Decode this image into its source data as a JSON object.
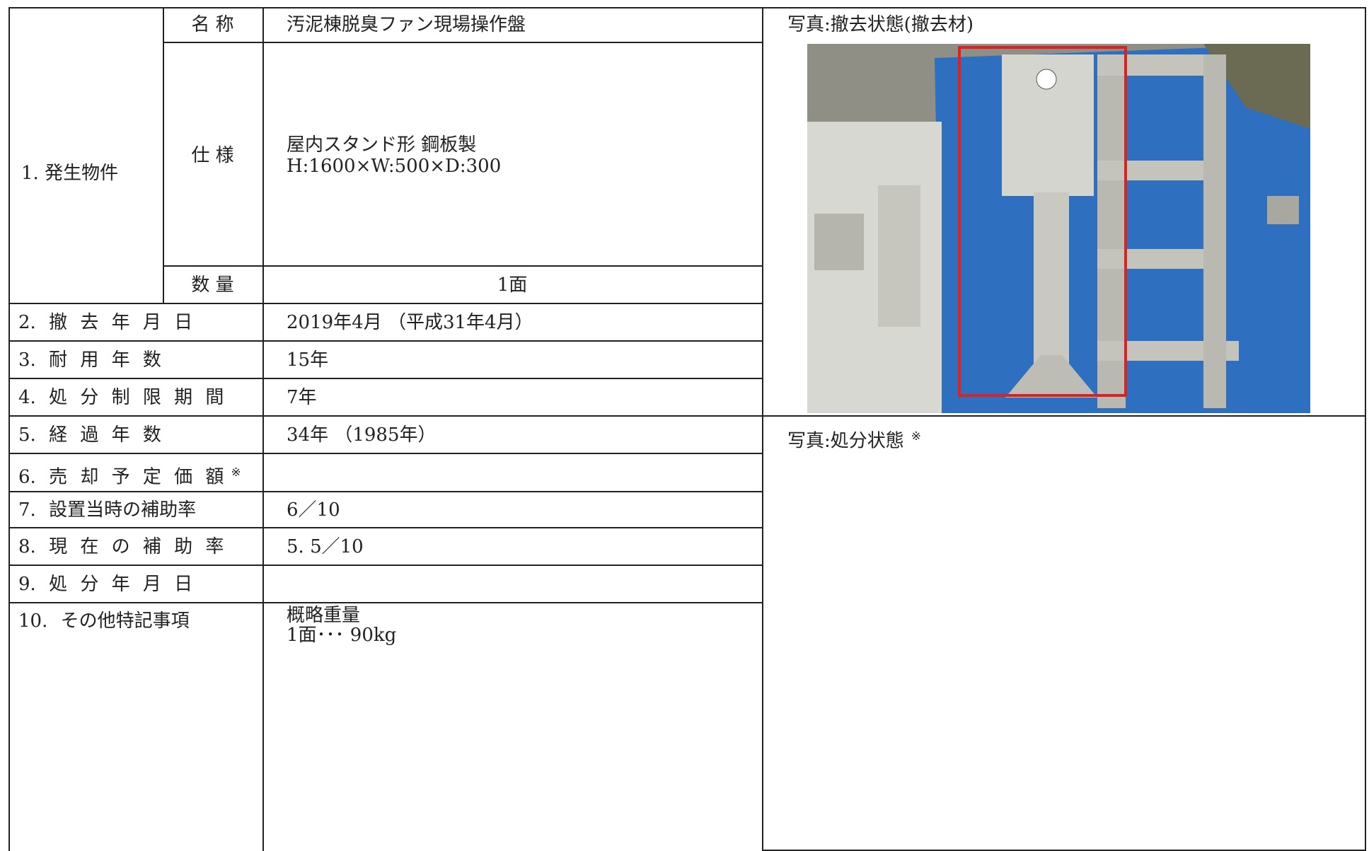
{
  "section1": {
    "label": "1. 発生物件",
    "name_label": "名 称",
    "name": "汚泥棟脱臭ファン現場操作盤",
    "spec_label": "仕 様",
    "spec": [
      "屋内スタンド形 鋼板製",
      "H:1600×W:500×D:300"
    ],
    "qty_label": "数 量",
    "qty": "1面"
  },
  "rows": [
    {
      "label": "2. 撤 去 年 月 日",
      "value": "2019年4月 （平成31年4月）"
    },
    {
      "label": "3. 耐 用 年 数",
      "value": "15年"
    },
    {
      "label": "4. 処 分 制 限 期 間",
      "value": "7年"
    },
    {
      "label": "5. 経 過 年 数",
      "value": "34年 （1985年）"
    },
    {
      "label": "6. 売 却 予 定 価 額",
      "mark": "※"
    },
    {
      "label": "7. 設置当時の補助率",
      "value": "6／10"
    },
    {
      "label": "8. 現 在 の 補 助 率",
      "value": "5. 5／10"
    },
    {
      "label": "9. 処 分 年 月 日"
    },
    {
      "label": "10. その他特記事項",
      "value": [
        "概略重量",
        "1面･･･ 90kg"
      ]
    }
  ],
  "photos": [
    {
      "caption": "写真:撤去状態(撤去材)"
    },
    {
      "caption": "写真:処分状態",
      "mark": "※"
    }
  ]
}
